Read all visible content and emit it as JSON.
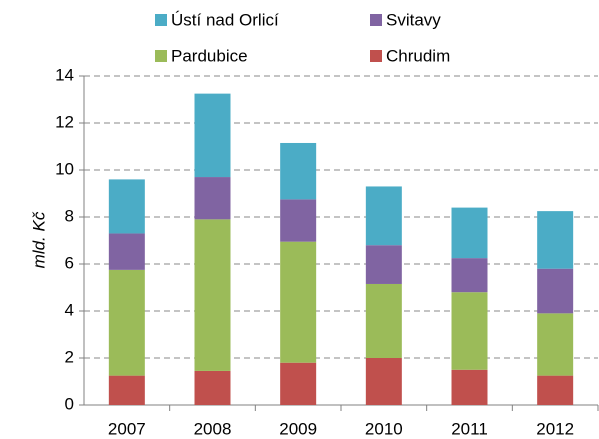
{
  "chart_data": {
    "type": "stacked_bar",
    "y_label": "mld. Kč",
    "categories": [
      "2007",
      "2008",
      "2009",
      "2010",
      "2011",
      "2012"
    ],
    "series": [
      {
        "name": "Chrudim",
        "color": "#c0504d",
        "values": [
          1.25,
          1.45,
          1.8,
          2.0,
          1.5,
          1.25
        ]
      },
      {
        "name": "Pardubice",
        "color": "#9bbb59",
        "values": [
          4.5,
          6.45,
          5.15,
          3.15,
          3.3,
          2.65
        ]
      },
      {
        "name": "Svitavy",
        "color": "#8064a2",
        "values": [
          1.55,
          1.8,
          1.8,
          1.65,
          1.45,
          1.9
        ]
      },
      {
        "name": "Ústí nad Orlicí",
        "color": "#4bacc6",
        "values": [
          2.3,
          3.55,
          2.4,
          2.5,
          2.15,
          2.45
        ]
      }
    ],
    "ylim": [
      0,
      14
    ],
    "yticks": [
      0,
      2,
      4,
      6,
      8,
      10,
      12,
      14
    ],
    "grid": true
  }
}
